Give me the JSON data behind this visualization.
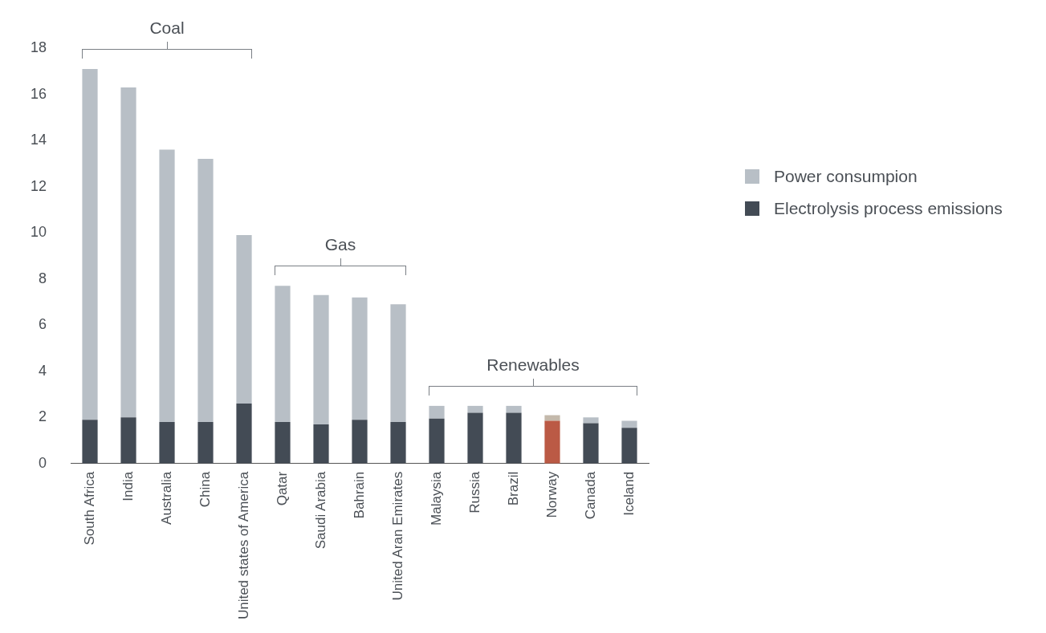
{
  "chart_data": {
    "type": "bar",
    "stacked": true,
    "categories": [
      "South Africa",
      "India",
      "Australia",
      "China",
      "United states of America",
      "Qatar",
      "Saudi Arabia",
      "Bahrain",
      "United Aran Emirates",
      "Malaysia",
      "Russia",
      "Brazil",
      "Norway",
      "Canada",
      "Iceland"
    ],
    "series": [
      {
        "name": "Electrolysis process emissions",
        "color": "#434b55",
        "colors": [
          "#434b55",
          "#434b55",
          "#434b55",
          "#434b55",
          "#434b55",
          "#434b55",
          "#434b55",
          "#434b55",
          "#434b55",
          "#434b55",
          "#434b55",
          "#434b55",
          "#bb5a45",
          "#434b55",
          "#434b55"
        ],
        "values": [
          1.9,
          2.0,
          1.8,
          1.8,
          2.6,
          1.8,
          1.7,
          1.9,
          1.8,
          1.95,
          2.2,
          2.2,
          1.85,
          1.75,
          1.55
        ]
      },
      {
        "name": "Power consumpion",
        "color": "#b8bfc6",
        "colors": [
          "#b8bfc6",
          "#b8bfc6",
          "#b8bfc6",
          "#b8bfc6",
          "#b8bfc6",
          "#b8bfc6",
          "#b8bfc6",
          "#b8bfc6",
          "#b8bfc6",
          "#b8bfc6",
          "#b8bfc6",
          "#b8bfc6",
          "#c4b9ab",
          "#b8bfc6",
          "#b8bfc6"
        ],
        "values": [
          15.2,
          14.3,
          11.8,
          11.4,
          7.3,
          5.9,
          5.6,
          5.3,
          5.1,
          0.55,
          0.3,
          0.3,
          0.25,
          0.25,
          0.3
        ]
      }
    ],
    "ylim": [
      0,
      18
    ],
    "yticks": [
      0,
      2,
      4,
      6,
      8,
      10,
      12,
      14,
      16,
      18
    ],
    "grid": false,
    "legend": "right",
    "annotations": [
      "Coal",
      "Gas",
      "Renewables"
    ]
  }
}
